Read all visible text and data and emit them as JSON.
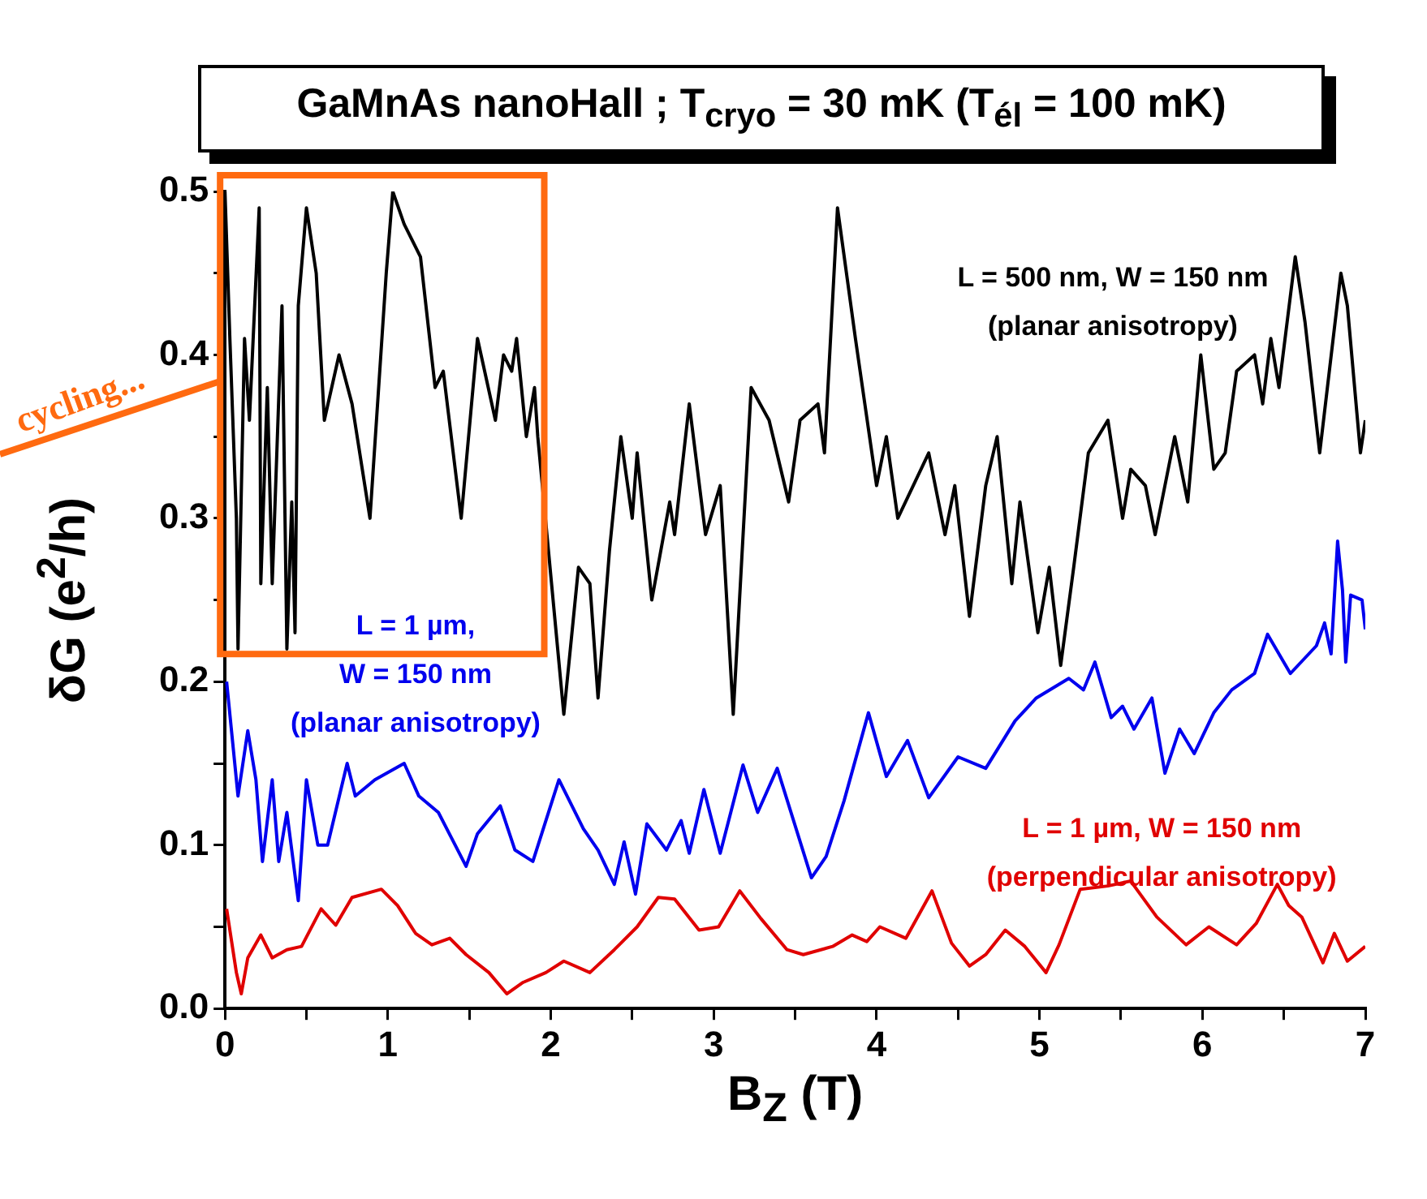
{
  "chart_data": {
    "type": "line",
    "title": "GaMnAs nanoHall ; T$_{cryo}$ = 30 mK (T$_{él}$ = 100 mK)",
    "xlabel": "B$_{Z}$ (T)",
    "ylabel": "δG (e$^{2}$/h)",
    "annotations": [
      "cycling..."
    ],
    "xlim": [
      0,
      7
    ],
    "xticks": [
      0,
      {
        "value": 0.5,
        "label": null
      },
      1,
      {
        "value": 1.5,
        "label": null
      },
      2,
      {
        "value": 2.5,
        "label": null
      },
      3,
      {
        "value": 3.5,
        "label": null
      },
      4,
      {
        "value": 4.5,
        "label": null
      },
      5,
      {
        "value": 5.5,
        "label": null
      },
      6,
      {
        "value": 6.5,
        "label": null
      },
      7
    ],
    "ylim": [
      0,
      0.5
    ],
    "yticks": [
      {
        "value": 0,
        "label": "0.0"
      },
      {
        "value": 0.05,
        "label": null
      },
      {
        "value": 0.1,
        "label": "0.1"
      },
      {
        "value": 0.15,
        "label": null
      },
      {
        "value": 0.2,
        "label": "0.2"
      },
      {
        "value": 0.25,
        "label": null
      },
      {
        "value": 0.3,
        "label": "0.3"
      },
      {
        "value": 0.35,
        "label": null
      },
      {
        "value": 0.4,
        "label": "0.4"
      },
      {
        "value": 0.45,
        "label": null
      },
      {
        "value": 0.5,
        "label": "0.5"
      }
    ],
    "grid": false,
    "legend": false,
    "marker": "none",
    "line_style": "solid",
    "series": [
      {
        "name": "L = 500 nm, W = 150 nm (planar anisotropy)",
        "color": "#000000",
        "x": [
          0.0,
          0.03,
          0.07,
          0.08,
          0.12,
          0.15,
          0.21,
          0.22,
          0.26,
          0.29,
          0.35,
          0.38,
          0.41,
          0.43,
          0.45,
          0.5,
          0.56,
          0.61,
          0.7,
          0.78,
          0.89,
          0.99,
          1.03,
          1.1,
          1.2,
          1.29,
          1.34,
          1.45,
          1.55,
          1.66,
          1.71,
          1.76,
          1.79,
          1.85,
          1.9,
          1.92,
          2.08,
          2.17,
          2.24,
          2.29,
          2.36,
          2.43,
          2.5,
          2.53,
          2.62,
          2.73,
          2.76,
          2.85,
          2.95,
          3.04,
          3.12,
          3.23,
          3.34,
          3.46,
          3.53,
          3.64,
          3.68,
          3.76,
          3.87,
          4.0,
          4.06,
          4.13,
          4.32,
          4.42,
          4.48,
          4.57,
          4.67,
          4.74,
          4.83,
          4.88,
          4.99,
          5.06,
          5.13,
          5.21,
          5.3,
          5.42,
          5.51,
          5.56,
          5.65,
          5.71,
          5.83,
          5.91,
          5.99,
          6.07,
          6.14,
          6.21,
          6.32,
          6.37,
          6.42,
          6.47,
          6.57,
          6.63,
          6.72,
          6.85,
          6.89,
          6.97,
          7.0
        ],
        "values": [
          0.5,
          0.41,
          0.3,
          0.22,
          0.41,
          0.36,
          0.49,
          0.26,
          0.38,
          0.26,
          0.43,
          0.22,
          0.31,
          0.23,
          0.43,
          0.49,
          0.45,
          0.36,
          0.4,
          0.37,
          0.3,
          0.45,
          0.5,
          0.48,
          0.46,
          0.38,
          0.39,
          0.3,
          0.41,
          0.36,
          0.4,
          0.39,
          0.41,
          0.35,
          0.38,
          0.35,
          0.18,
          0.27,
          0.26,
          0.19,
          0.28,
          0.35,
          0.3,
          0.34,
          0.25,
          0.31,
          0.29,
          0.37,
          0.29,
          0.32,
          0.18,
          0.38,
          0.36,
          0.31,
          0.36,
          0.37,
          0.34,
          0.49,
          0.41,
          0.32,
          0.35,
          0.3,
          0.34,
          0.29,
          0.32,
          0.24,
          0.32,
          0.35,
          0.26,
          0.31,
          0.23,
          0.27,
          0.21,
          0.27,
          0.34,
          0.36,
          0.3,
          0.33,
          0.32,
          0.29,
          0.35,
          0.31,
          0.4,
          0.33,
          0.34,
          0.39,
          0.4,
          0.37,
          0.41,
          0.38,
          0.46,
          0.42,
          0.34,
          0.45,
          0.43,
          0.34,
          0.36
        ]
      },
      {
        "name": "L = 1 µm, W = 150 nm (planar anisotropy)",
        "color": "#0000ee",
        "x": [
          0.01,
          0.08,
          0.14,
          0.19,
          0.23,
          0.29,
          0.33,
          0.38,
          0.45,
          0.5,
          0.57,
          0.63,
          0.75,
          0.8,
          0.92,
          1.1,
          1.19,
          1.31,
          1.48,
          1.55,
          1.69,
          1.78,
          1.89,
          2.05,
          2.2,
          2.29,
          2.39,
          2.45,
          2.52,
          2.59,
          2.71,
          2.8,
          2.85,
          2.94,
          3.04,
          3.18,
          3.27,
          3.39,
          3.6,
          3.69,
          3.8,
          3.95,
          4.06,
          4.19,
          4.32,
          4.5,
          4.67,
          4.85,
          4.98,
          5.18,
          5.27,
          5.34,
          5.44,
          5.51,
          5.58,
          5.69,
          5.77,
          5.86,
          5.95,
          6.07,
          6.18,
          6.32,
          6.4,
          6.54,
          6.7,
          6.75,
          6.79,
          6.83,
          6.86,
          6.88,
          6.91,
          6.98,
          7.0
        ],
        "values": [
          0.2,
          0.13,
          0.17,
          0.14,
          0.09,
          0.14,
          0.09,
          0.12,
          0.066,
          0.14,
          0.1,
          0.1,
          0.15,
          0.13,
          0.14,
          0.15,
          0.13,
          0.12,
          0.087,
          0.107,
          0.124,
          0.097,
          0.09,
          0.14,
          0.11,
          0.097,
          0.076,
          0.102,
          0.07,
          0.113,
          0.097,
          0.115,
          0.095,
          0.134,
          0.095,
          0.149,
          0.12,
          0.147,
          0.08,
          0.093,
          0.127,
          0.181,
          0.142,
          0.164,
          0.129,
          0.154,
          0.147,
          0.176,
          0.19,
          0.202,
          0.195,
          0.212,
          0.178,
          0.185,
          0.171,
          0.19,
          0.144,
          0.171,
          0.156,
          0.181,
          0.195,
          0.205,
          0.229,
          0.205,
          0.222,
          0.236,
          0.217,
          0.286,
          0.256,
          0.212,
          0.253,
          0.25,
          0.232
        ]
      },
      {
        "name": "L = 1 µm, W = 150 nm (perpendicular anisotropy)",
        "color": "#e00000",
        "x": [
          0.01,
          0.07,
          0.1,
          0.14,
          0.22,
          0.29,
          0.38,
          0.47,
          0.59,
          0.68,
          0.78,
          0.96,
          1.06,
          1.17,
          1.27,
          1.38,
          1.48,
          1.62,
          1.73,
          1.83,
          1.97,
          2.08,
          2.24,
          2.39,
          2.53,
          2.66,
          2.76,
          2.91,
          3.03,
          3.16,
          3.29,
          3.45,
          3.55,
          3.73,
          3.85,
          3.94,
          4.02,
          4.18,
          4.34,
          4.46,
          4.57,
          4.67,
          4.79,
          4.91,
          5.04,
          5.12,
          5.25,
          5.42,
          5.56,
          5.72,
          5.9,
          6.04,
          6.21,
          6.33,
          6.46,
          6.53,
          6.61,
          6.74,
          6.81,
          6.89,
          7.0
        ],
        "values": [
          0.061,
          0.022,
          0.009,
          0.031,
          0.045,
          0.031,
          0.036,
          0.038,
          0.061,
          0.051,
          0.068,
          0.073,
          0.063,
          0.046,
          0.039,
          0.043,
          0.033,
          0.022,
          0.009,
          0.016,
          0.022,
          0.029,
          0.022,
          0.036,
          0.05,
          0.068,
          0.067,
          0.048,
          0.05,
          0.072,
          0.055,
          0.036,
          0.033,
          0.038,
          0.045,
          0.041,
          0.05,
          0.043,
          0.072,
          0.04,
          0.026,
          0.033,
          0.048,
          0.038,
          0.022,
          0.039,
          0.073,
          0.075,
          0.078,
          0.056,
          0.039,
          0.05,
          0.039,
          0.052,
          0.076,
          0.063,
          0.056,
          0.028,
          0.046,
          0.029,
          0.038
        ]
      }
    ]
  }
}
